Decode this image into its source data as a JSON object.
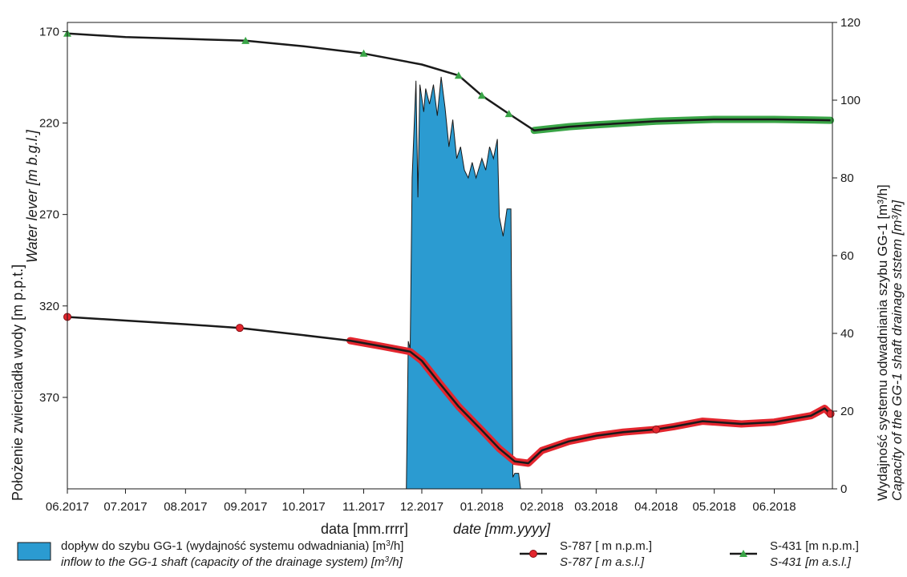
{
  "colors": {
    "inflow_fill": "#2b9bd1",
    "s787_marker": "#e3262e",
    "s431_marker": "#3aa547",
    "line": "#1a1a1a",
    "axis": "#1a1a1a"
  },
  "chart_data": {
    "type": "area",
    "x_ticks": [
      "06.2017",
      "07.2017",
      "08.2017",
      "09.2017",
      "10.2017",
      "11.2017",
      "12.2017",
      "01.2018",
      "02.2018",
      "03.2018",
      "04.2018",
      "05.2018",
      "06.2018"
    ],
    "xlim": [
      "06.2017",
      "07.2018 (approx. 06.2018 + 0.6 month)"
    ],
    "xlabel": {
      "pl": "data [mm.rrrr]",
      "en": "date [mm.yyyy]"
    },
    "y_left": {
      "label_pl": "Położenie zwierciadła wody [m p.p.t.]",
      "label_en": "Water lever [m b.g.l.]",
      "ticks": [
        170,
        220,
        270,
        320,
        370
      ],
      "range": [
        165,
        420
      ],
      "inverted": true
    },
    "y_right": {
      "label_pl": "Wydajność systemu odwadniania szybu GG-1 [m³/h]",
      "label_en": "Capacity of the GG-1 shaft drainage ststem [m³/h]",
      "ticks": [
        0,
        20,
        40,
        60,
        80,
        100,
        120
      ],
      "range": [
        0,
        120
      ]
    },
    "series": [
      {
        "name": "S-787 [ m n.p.m.]",
        "name_en": "S-787 [ m a.s.l.]",
        "axis": "left",
        "marker": "circle",
        "points": [
          {
            "x": "2017-06-01",
            "y": 326
          },
          {
            "x": "2017-07-01",
            "y": 328
          },
          {
            "x": "2017-08-01",
            "y": 330
          },
          {
            "x": "2017-08-29",
            "y": 332
          },
          {
            "x": "2017-10-01",
            "y": 336
          },
          {
            "x": "2017-10-25",
            "y": 339
          },
          {
            "x": "2017-11-10",
            "y": 342
          },
          {
            "x": "2017-11-25",
            "y": 345
          },
          {
            "x": "2017-12-01",
            "y": 350
          },
          {
            "x": "2017-12-10",
            "y": 362
          },
          {
            "x": "2017-12-20",
            "y": 375
          },
          {
            "x": "2018-01-01",
            "y": 388
          },
          {
            "x": "2018-01-10",
            "y": 398
          },
          {
            "x": "2018-01-18",
            "y": 405
          },
          {
            "x": "2018-01-25",
            "y": 406
          },
          {
            "x": "2018-02-01",
            "y": 399
          },
          {
            "x": "2018-02-15",
            "y": 394
          },
          {
            "x": "2018-03-01",
            "y": 391
          },
          {
            "x": "2018-03-15",
            "y": 389
          },
          {
            "x": "2018-04-01",
            "y": 387.5
          },
          {
            "x": "2018-04-10",
            "y": 386
          },
          {
            "x": "2018-04-25",
            "y": 383
          },
          {
            "x": "2018-05-15",
            "y": 384.5
          },
          {
            "x": "2018-06-01",
            "y": 383.5
          },
          {
            "x": "2018-06-20",
            "y": 380
          },
          {
            "x": "2018-06-27",
            "y": 376
          },
          {
            "x": "2018-06-30",
            "y": 379
          }
        ]
      },
      {
        "name": "S-431 [m n.p.m.]",
        "name_en": "S-431 [m a.s.l.]",
        "axis": "left",
        "marker": "triangle",
        "points": [
          {
            "x": "2017-06-01",
            "y": 171
          },
          {
            "x": "2017-07-01",
            "y": 173
          },
          {
            "x": "2017-08-01",
            "y": 174
          },
          {
            "x": "2017-09-01",
            "y": 175
          },
          {
            "x": "2017-10-01",
            "y": 178
          },
          {
            "x": "2017-11-01",
            "y": 182
          },
          {
            "x": "2017-12-01",
            "y": 188
          },
          {
            "x": "2017-12-20",
            "y": 194
          },
          {
            "x": "2018-01-01",
            "y": 205
          },
          {
            "x": "2018-01-15",
            "y": 215
          },
          {
            "x": "2018-01-28",
            "y": 224
          },
          {
            "x": "2018-02-15",
            "y": 222
          },
          {
            "x": "2018-03-01",
            "y": 221
          },
          {
            "x": "2018-04-01",
            "y": 219
          },
          {
            "x": "2018-05-01",
            "y": 218
          },
          {
            "x": "2018-06-01",
            "y": 218
          },
          {
            "x": "2018-06-30",
            "y": 218.5
          }
        ]
      },
      {
        "name": "dopływ do szybu GG-1 (wydajność systemu odwadniania) [m³/h]",
        "name_en": "inflow to the GG-1 shaft (capacity of the drainage system) [m³/h]",
        "axis": "right",
        "type": "area",
        "points": [
          {
            "x": "2017-11-23",
            "y": 0
          },
          {
            "x": "2017-11-24",
            "y": 38
          },
          {
            "x": "2017-11-25",
            "y": 36
          },
          {
            "x": "2017-11-26",
            "y": 80
          },
          {
            "x": "2017-11-28",
            "y": 105
          },
          {
            "x": "2017-11-29",
            "y": 75
          },
          {
            "x": "2017-11-30",
            "y": 104
          },
          {
            "x": "2017-12-02",
            "y": 97
          },
          {
            "x": "2017-12-03",
            "y": 103
          },
          {
            "x": "2017-12-05",
            "y": 99
          },
          {
            "x": "2017-12-07",
            "y": 104
          },
          {
            "x": "2017-12-09",
            "y": 96
          },
          {
            "x": "2017-12-11",
            "y": 106
          },
          {
            "x": "2017-12-13",
            "y": 98
          },
          {
            "x": "2017-12-15",
            "y": 88
          },
          {
            "x": "2017-12-17",
            "y": 95
          },
          {
            "x": "2017-12-19",
            "y": 85
          },
          {
            "x": "2017-12-21",
            "y": 88
          },
          {
            "x": "2017-12-23",
            "y": 82
          },
          {
            "x": "2017-12-25",
            "y": 80
          },
          {
            "x": "2017-12-27",
            "y": 84
          },
          {
            "x": "2017-12-29",
            "y": 80
          },
          {
            "x": "2018-01-01",
            "y": 85
          },
          {
            "x": "2018-01-03",
            "y": 82
          },
          {
            "x": "2018-01-05",
            "y": 88
          },
          {
            "x": "2018-01-07",
            "y": 85
          },
          {
            "x": "2018-01-09",
            "y": 90
          },
          {
            "x": "2018-01-10",
            "y": 70
          },
          {
            "x": "2018-01-12",
            "y": 65
          },
          {
            "x": "2018-01-14",
            "y": 72
          },
          {
            "x": "2018-01-16",
            "y": 72
          },
          {
            "x": "2018-01-17",
            "y": 3
          },
          {
            "x": "2018-01-18",
            "y": 4
          },
          {
            "x": "2018-01-20",
            "y": 4
          },
          {
            "x": "2018-01-21",
            "y": 0
          }
        ]
      }
    ],
    "legend": [
      {
        "pl": "dopływ do szybu GG-1 (wydajność systemu odwadniania) [m",
        "en": "inflow to the GG-1 shaft (capacity of the drainage system) [m",
        "unit_tail": "/h]",
        "sup": "3"
      },
      {
        "pl": "S-787 [ m n.p.m.]",
        "en": "S-787 [ m a.s.l.]"
      },
      {
        "pl": "S-431 [m n.p.m.]",
        "en": "S-431 [m a.s.l.]"
      }
    ]
  }
}
